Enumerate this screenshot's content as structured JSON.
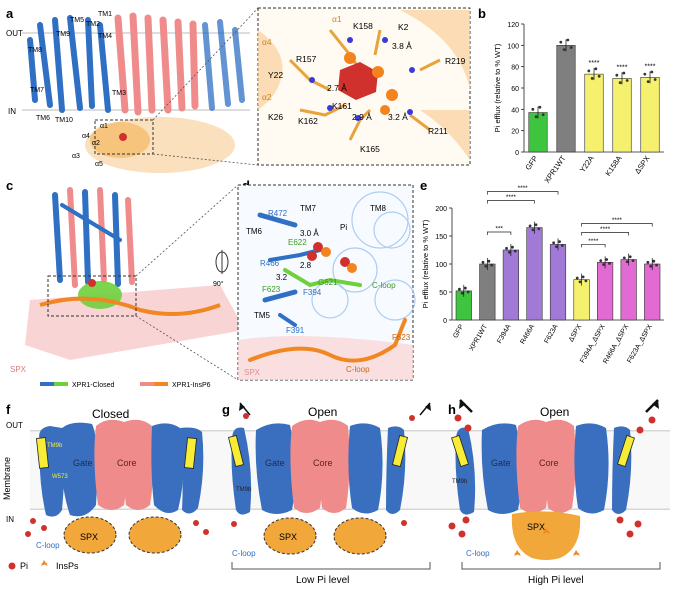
{
  "panels": {
    "a": {
      "letter": "a",
      "out": "OUT",
      "in": "IN",
      "tm": [
        "TM1",
        "TM2",
        "TM3",
        "TM4",
        "TM5",
        "TM6",
        "TM7",
        "TM8",
        "TM9",
        "TM10"
      ],
      "alpha": [
        "α1",
        "α2",
        "α3",
        "α4",
        "α5"
      ]
    },
    "a_zoom": {
      "labels": [
        "K158",
        "K2",
        "R157",
        "Y22",
        "2.7 Å",
        "3.8 Å",
        "K161",
        "K26",
        "K162",
        "2.9 Å",
        "3.2 Å",
        "R219",
        "R211",
        "K165",
        "α4",
        "α1",
        "α2"
      ]
    },
    "b": {
      "letter": "b"
    },
    "c": {
      "letter": "c",
      "spx": "SPX",
      "legend_closed": "XPR1-Closed",
      "legend_insp6": "XPR1-InsP6"
    },
    "d": {
      "letter": "d",
      "labels": [
        "TM7",
        "TM8",
        "R472",
        "TM6",
        "E622",
        "3.0 Å",
        "Pi",
        "R466",
        "3.2",
        "2.8",
        "F623",
        "F394",
        "G621",
        "C-loop",
        "TM5",
        "F391",
        "F623",
        "C-loop",
        "SPX"
      ],
      "rotate": "90°"
    },
    "e": {
      "letter": "e"
    },
    "f": {
      "letter": "f",
      "title": "Closed",
      "out": "OUT",
      "membrane": "Membrane",
      "in": "IN",
      "gate": "Gate",
      "core": "Core",
      "tm9b": "TM9b",
      "w573": "W573",
      "spx": "SPX",
      "cloop": "C-loop",
      "pi": "Pi",
      "insps": "InsPs"
    },
    "g": {
      "letter": "g",
      "title": "Open",
      "gate": "Gate",
      "core": "Core",
      "tm9b": "TM9b",
      "spx": "SPX",
      "cloop": "C-loop",
      "bracket": "Low Pi level"
    },
    "h": {
      "letter": "h",
      "title": "Open",
      "gate": "Gate",
      "core": "Core",
      "tm9b": "TM9b",
      "spx": "SPX",
      "cloop": "C-loop",
      "bracket": "High Pi level"
    }
  },
  "chart_data": [
    {
      "type": "bar",
      "ylabel": "Pi efflux (relative to % WT)",
      "ylim": [
        0,
        120
      ],
      "yticks": [
        "0",
        "20",
        "40",
        "60",
        "80",
        "100",
        "120"
      ],
      "categories": [
        "GFP",
        "XPR1WT",
        "Y22A",
        "K158A",
        "ΔSPX"
      ],
      "values": [
        37,
        100,
        73,
        69,
        70
      ],
      "colors": [
        "#3ec43e",
        "#7f7f7f",
        "#f5f06e",
        "#f5f06e",
        "#f5f06e"
      ],
      "stars": [
        "",
        "",
        "****",
        "****",
        "****"
      ]
    },
    {
      "type": "bar",
      "ylabel": "Pi efflux (relative to % WT)",
      "ylim": [
        0,
        200
      ],
      "yticks": [
        "0",
        "50",
        "100",
        "150",
        "200"
      ],
      "categories": [
        "GFP",
        "XPR1WT",
        "F394A",
        "R466A",
        "F623A",
        "ΔSPX",
        "F394A_ΔSPX",
        "R466A_ΔSPX",
        "F623A_ΔSPX"
      ],
      "values": [
        52,
        100,
        125,
        165,
        135,
        72,
        103,
        108,
        100
      ],
      "colors": [
        "#3ec43e",
        "#7f7f7f",
        "#a07ad6",
        "#a07ad6",
        "#a07ad6",
        "#f5f06e",
        "#e26bd3",
        "#e26bd3",
        "#e26bd3"
      ],
      "brackets": [
        {
          "from": 1,
          "to": 2,
          "label": "***"
        },
        {
          "from": 1,
          "to": 3,
          "label": "****"
        },
        {
          "from": 1,
          "to": 4,
          "label": "****"
        },
        {
          "from": 5,
          "to": 6,
          "label": "****"
        },
        {
          "from": 5,
          "to": 7,
          "label": "****"
        },
        {
          "from": 5,
          "to": 8,
          "label": "****"
        }
      ]
    }
  ],
  "colors": {
    "blue": "#2f6fc4",
    "pink": "#f08b8b",
    "orange": "#f2a73b",
    "yellow": "#f7ec36",
    "red": "#d0312d"
  }
}
